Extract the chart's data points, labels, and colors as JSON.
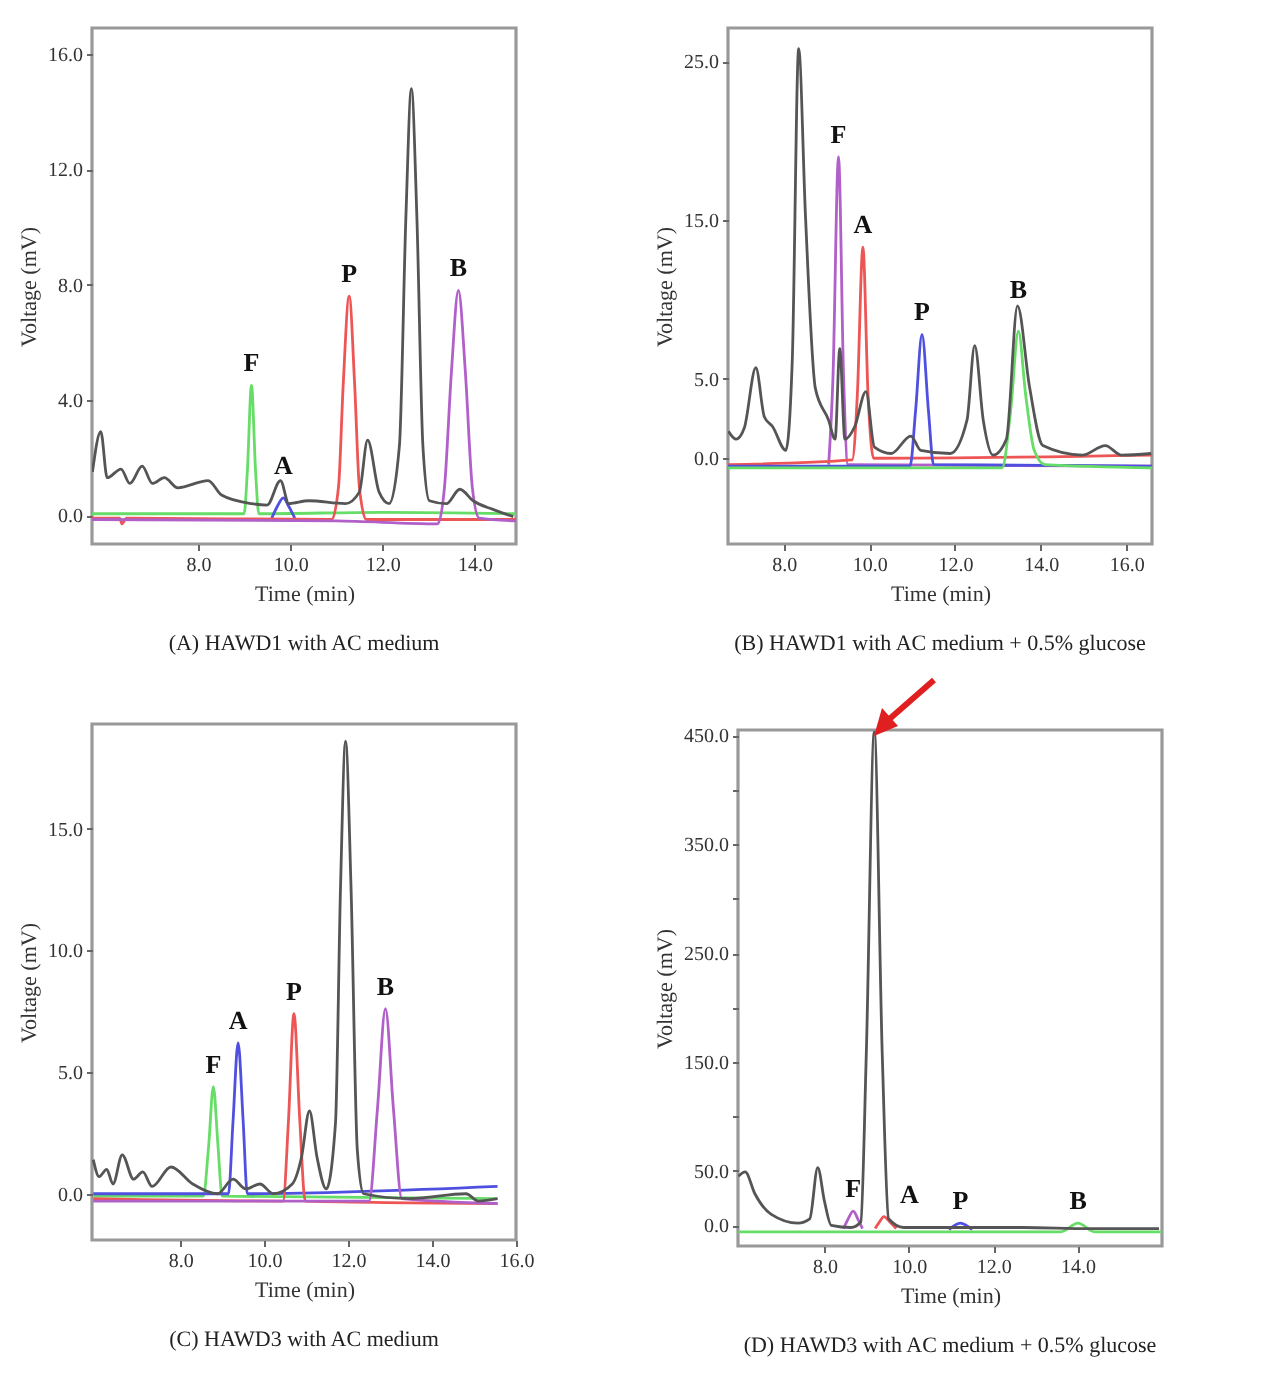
{
  "chart_data": [
    {
      "type": "line",
      "title": "(A) HAWD1 with AC medium",
      "xlabel": "Time (min)",
      "ylabel": "Voltage (mV)",
      "grid": false,
      "legend": false,
      "xlim": [
        5.7,
        14.9
      ],
      "xticks": [
        {
          "value": 8,
          "label": "8.0"
        },
        {
          "value": 10,
          "label": "10.0"
        },
        {
          "value": 12,
          "label": "12.0"
        },
        {
          "value": 14,
          "label": "14.0"
        }
      ],
      "ylim": [
        -1,
        16.9
      ],
      "yticks": [
        {
          "value": 0,
          "label": "0.0"
        },
        {
          "value": 4,
          "label": "4.0"
        },
        {
          "value": 8,
          "label": "8.0"
        },
        {
          "value": 12,
          "label": "12.0"
        },
        {
          "value": 16,
          "label": "16.0"
        }
      ],
      "series": [
        {
          "color": "#66dd66",
          "x": [
            5.7,
            9.0,
            9.07,
            9.16,
            9.25,
            9.32,
            12.0,
            14.9
          ],
          "values": [
            0.05,
            0.05,
            1.5,
            4.5,
            1.5,
            0.05,
            0.1,
            0.05
          ]
        },
        {
          "color": "#5050e0",
          "x": [
            9.6,
            9.72,
            9.85,
            9.97,
            10.1
          ],
          "values": [
            -0.1,
            0.3,
            0.6,
            0.3,
            -0.1
          ]
        },
        {
          "color": "#ee5555",
          "x": [
            5.7,
            6.3,
            6.35,
            6.45,
            10.9,
            11.05,
            11.15,
            11.28,
            11.4,
            11.5,
            11.65,
            14.9
          ],
          "values": [
            -0.1,
            -0.1,
            -0.3,
            -0.1,
            -0.15,
            1,
            4.5,
            7.6,
            4.5,
            1,
            -0.15,
            -0.15
          ]
        },
        {
          "color": "#b060c8",
          "x": [
            5.7,
            11.0,
            13.2,
            13.35,
            13.5,
            13.65,
            13.8,
            13.95,
            14.1,
            14.9
          ],
          "values": [
            -0.15,
            -0.2,
            -0.3,
            1,
            5,
            7.8,
            5,
            1,
            -0.1,
            -0.2
          ]
        },
        {
          "color": "#555555",
          "x": [
            5.71,
            5.89,
            6.03,
            6.33,
            6.52,
            6.79,
            7.01,
            7.27,
            7.56,
            8.22,
            8.51,
            9.16,
            9.5,
            9.79,
            9.97,
            10.4,
            11.2,
            11.5,
            11.68,
            11.93,
            12.15,
            12.37,
            12.51,
            12.63,
            12.75,
            12.88,
            13.02,
            13.39,
            13.68,
            13.97,
            14.4,
            14.84
          ],
          "values": [
            1.5,
            2.9,
            1.3,
            1.6,
            1.1,
            1.7,
            1.1,
            1.3,
            0.95,
            1.2,
            0.7,
            0.4,
            0.35,
            1.2,
            0.4,
            0.5,
            0.4,
            0.8,
            2.6,
            0.8,
            0.4,
            2.4,
            10.3,
            14.8,
            10.3,
            2.4,
            0.5,
            0.4,
            0.9,
            0.5,
            0.2,
            -0.05
          ]
        }
      ],
      "annotations": [
        "F",
        "A",
        "P",
        "B"
      ]
    },
    {
      "type": "line",
      "title": "(B) HAWD1 with AC medium + 0.5% glucose",
      "xlabel": "Time (min)",
      "ylabel": "Voltage (mV)",
      "grid": false,
      "legend": false,
      "xlim": [
        6.7,
        16.6
      ],
      "xticks": [
        {
          "value": 8,
          "label": "8.0"
        },
        {
          "value": 10,
          "label": "10.0"
        },
        {
          "value": 12,
          "label": "12.0"
        },
        {
          "value": 14,
          "label": "14.0"
        },
        {
          "value": 16,
          "label": "16.0"
        }
      ],
      "ylim": [
        -5.4,
        27.1
      ],
      "yticks": [
        {
          "value": 0,
          "label": "0.0"
        },
        {
          "value": 5,
          "label": "5.0"
        },
        {
          "value": 15,
          "label": "15.0"
        },
        {
          "value": 25,
          "label": "25.0"
        }
      ],
      "series": [
        {
          "color": "#b060c8",
          "x": [
            9.05,
            9.15,
            9.28,
            9.4,
            9.5,
            16.6
          ],
          "values": [
            -0.4,
            5,
            19,
            5,
            -0.4,
            -0.5
          ]
        },
        {
          "color": "#ee5555",
          "x": [
            6.7,
            9.6,
            9.72,
            9.85,
            9.97,
            10.1,
            16.6
          ],
          "values": [
            -0.4,
            -0.1,
            4,
            13.3,
            4,
            0,
            0.2
          ]
        },
        {
          "color": "#5050e0",
          "x": [
            6.7,
            10.95,
            11.08,
            11.23,
            11.38,
            11.5,
            16.6
          ],
          "values": [
            -0.5,
            -0.5,
            3,
            7.8,
            3,
            -0.4,
            -0.5
          ]
        },
        {
          "color": "#66dd66",
          "x": [
            6.7,
            13.1,
            13.3,
            13.48,
            13.65,
            13.85,
            14.1,
            16.6
          ],
          "values": [
            -0.6,
            -0.6,
            3,
            8.0,
            4,
            0.5,
            -0.4,
            -0.6
          ]
        },
        {
          "color": "#555555",
          "x": [
            6.71,
            6.89,
            7.08,
            7.35,
            7.55,
            7.74,
            8.05,
            8.2,
            8.35,
            8.51,
            8.74,
            9.05,
            9.2,
            9.31,
            9.43,
            9.66,
            9.92,
            10.12,
            10.51,
            10.97,
            11.2,
            11.89,
            12.28,
            12.46,
            12.66,
            12.89,
            13.2,
            13.46,
            13.74,
            14.05,
            14.97,
            15.51,
            15.89,
            16.58
          ],
          "values": [
            1.7,
            1.2,
            1.9,
            5.7,
            2.6,
            2.0,
            0.5,
            6.1,
            25.8,
            15.2,
            4.4,
            2.4,
            1.2,
            6.9,
            1.2,
            2.0,
            4.2,
            0.7,
            0.3,
            1.4,
            0.5,
            0.3,
            2.4,
            7.1,
            2.4,
            0.2,
            1.2,
            9.6,
            4.5,
            0.8,
            0.2,
            0.8,
            0.2,
            0.3
          ]
        }
      ],
      "annotations": [
        "F",
        "A",
        "P",
        "B"
      ]
    },
    {
      "type": "line",
      "title": "(C) HAWD3 with AC medium",
      "xlabel": "Time (min)",
      "ylabel": "Voltage (mV)",
      "grid": false,
      "legend": false,
      "xlim": [
        5.9,
        16.0
      ],
      "xticks": [
        {
          "value": 8,
          "label": "8.0"
        },
        {
          "value": 10,
          "label": "10.0"
        },
        {
          "value": 12,
          "label": "12.0"
        },
        {
          "value": 14,
          "label": "14.0"
        },
        {
          "value": 16,
          "label": "16.0"
        }
      ],
      "ylim": [
        -1.9,
        19.3
      ],
      "yticks": [
        {
          "value": 0,
          "label": "0.0"
        },
        {
          "value": 5,
          "label": "5.0"
        },
        {
          "value": 10,
          "label": "10.0"
        },
        {
          "value": 15,
          "label": "15.0"
        }
      ],
      "series": [
        {
          "color": "#66dd66",
          "x": [
            5.93,
            8.55,
            8.68,
            8.79,
            8.9,
            9.0,
            15.56
          ],
          "values": [
            -0.1,
            -0.1,
            2,
            4.4,
            2,
            -0.1,
            -0.2
          ]
        },
        {
          "color": "#5050e0",
          "x": [
            5.93,
            9.15,
            9.26,
            9.38,
            9.5,
            9.6,
            15.56
          ],
          "values": [
            0,
            0,
            3,
            6.2,
            3,
            0,
            0.3
          ]
        },
        {
          "color": "#ee5555",
          "x": [
            5.93,
            10.45,
            10.58,
            10.71,
            10.85,
            10.98,
            15.56
          ],
          "values": [
            -0.2,
            -0.3,
            3,
            7.4,
            3,
            -0.3,
            -0.4
          ]
        },
        {
          "color": "#b060c8",
          "x": [
            5.93,
            12.5,
            12.7,
            12.89,
            13.08,
            13.28,
            15.56
          ],
          "values": [
            -0.3,
            -0.3,
            3.5,
            7.6,
            3.5,
            -0.2,
            -0.4
          ]
        },
        {
          "color": "#555555",
          "x": [
            5.93,
            6.07,
            6.25,
            6.4,
            6.62,
            6.89,
            7.11,
            7.33,
            7.78,
            8.3,
            8.89,
            9.26,
            9.56,
            9.9,
            10.22,
            10.67,
            10.89,
            11.08,
            11.26,
            11.48,
            11.7,
            11.82,
            11.94,
            12.07,
            12.22,
            12.37,
            13.48,
            14.81,
            15.1,
            15.56
          ],
          "values": [
            1.4,
            0.7,
            1.0,
            0.4,
            1.6,
            0.6,
            0.9,
            0.3,
            1.1,
            0.4,
            0,
            0.6,
            0.2,
            0.4,
            0,
            0.4,
            1.5,
            3.4,
            1.5,
            0.2,
            2.9,
            12.6,
            18.6,
            12.6,
            1.8,
            0,
            -0.2,
            0,
            -0.3,
            -0.2
          ]
        }
      ],
      "annotations": [
        "F",
        "A",
        "P",
        "B"
      ]
    },
    {
      "type": "line",
      "title": "(D) HAWD3 with AC medium + 0.5% glucose",
      "xlabel": "Time (min)",
      "ylabel": "Voltage (mV)",
      "grid": false,
      "legend": false,
      "xlim": [
        5.95,
        16.0
      ],
      "xticks": [
        {
          "value": 8,
          "label": "8.0"
        },
        {
          "value": 10,
          "label": "10.0"
        },
        {
          "value": 12,
          "label": "12.0"
        },
        {
          "value": 14,
          "label": "14.0"
        }
      ],
      "ylim": [
        -19,
        455
      ],
      "yticks": [
        {
          "value": 0,
          "label": "0.0"
        },
        {
          "value": 50,
          "label": "50.0"
        },
        {
          "value": 100,
          "label": null
        },
        {
          "value": 150,
          "label": "150.0"
        },
        {
          "value": 200,
          "label": null
        },
        {
          "value": 250,
          "label": "250.0"
        },
        {
          "value": 300,
          "label": null
        },
        {
          "value": 350,
          "label": "350.0"
        },
        {
          "value": 400,
          "label": null
        },
        {
          "value": 450,
          "label": "450.0"
        }
      ],
      "series": [
        {
          "color": "#b060c8",
          "x": [
            8.45,
            8.55,
            8.68,
            8.8,
            8.9
          ],
          "values": [
            -3,
            5,
            13,
            5,
            -3
          ]
        },
        {
          "color": "#ee5555",
          "x": [
            9.2,
            9.3,
            9.41,
            9.55,
            9.7
          ],
          "values": [
            -3,
            3,
            8,
            3,
            -3
          ]
        },
        {
          "color": "#5050e0",
          "x": [
            10.95,
            11.22,
            11.5
          ],
          "values": [
            -4,
            2,
            -4
          ]
        },
        {
          "color": "#66dd66",
          "x": [
            5.96,
            13.6,
            14.01,
            14.4,
            16.0
          ],
          "values": [
            -6,
            -6,
            2,
            -6,
            -6
          ]
        },
        {
          "color": "#555555",
          "x": [
            5.96,
            6.12,
            6.35,
            6.74,
            7.37,
            7.65,
            7.84,
            8.0,
            8.16,
            8.63,
            8.86,
            8.99,
            9.18,
            9.37,
            9.52,
            9.88,
            11.14,
            12.71,
            14.28,
            15.93
          ],
          "values": [
            45,
            49,
            29,
            10,
            2,
            6,
            53,
            22,
            0,
            -2,
            3,
            156,
            453,
            156,
            6,
            -2,
            -2,
            -2,
            -3,
            -3
          ]
        }
      ],
      "annotations": [
        "F",
        "A",
        "P",
        "B"
      ]
    }
  ]
}
